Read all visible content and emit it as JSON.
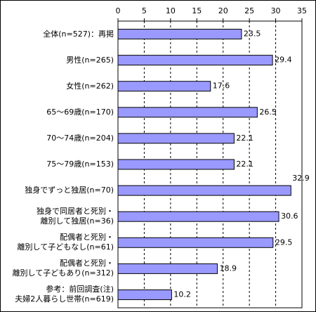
{
  "chart_data": {
    "type": "hbar",
    "categories": [
      "全体(n=527)：再掲",
      "男性(n=265)",
      "女性(n=262)",
      "65〜69歳(n=170)",
      "70〜74歳(n=204)",
      "75〜79歳(n=153)",
      "独身でずっと独居(n=70)",
      "独身で同居者と死別・\n離別して独居(n=36)",
      "配偶者と死別・\n離別して子どもなし(n=61)",
      "配偶者と死別・\n離別して子どもあり(n=312)",
      "参考：前回調査(注)\n夫婦2人暮らし世帯(n=619)"
    ],
    "values": [
      23.5,
      29.4,
      17.6,
      26.5,
      22.1,
      22.1,
      32.9,
      30.6,
      29.5,
      18.9,
      10.2
    ],
    "color": "#9999ff",
    "xlim": [
      0,
      35
    ],
    "xticks": [
      0,
      5,
      10,
      15,
      20,
      25,
      30,
      35
    ],
    "grid": true
  }
}
